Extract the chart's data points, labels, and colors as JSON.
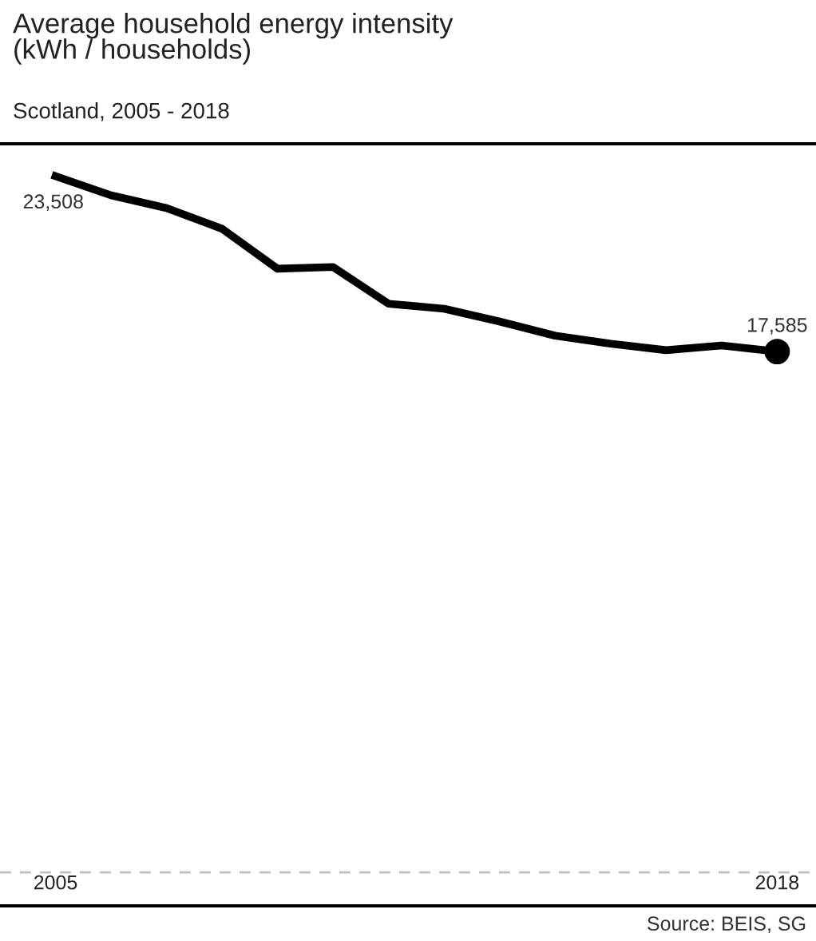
{
  "chart_data": {
    "type": "line",
    "title": "Average household energy intensity\n(kWh / households)",
    "subtitle": "Scotland, 2005 - 2018",
    "x": [
      2005,
      2006,
      2007,
      2008,
      2009,
      2010,
      2011,
      2012,
      2013,
      2014,
      2015,
      2016,
      2017,
      2018
    ],
    "series": [
      {
        "color": "#000000",
        "values": [
          23508,
          22860,
          22430,
          21730,
          20380,
          20440,
          19200,
          19030,
          18600,
          18120,
          17850,
          17630,
          17790,
          17585
        ],
        "value_labels": [
          "23,508",
          null,
          null,
          null,
          null,
          null,
          null,
          null,
          null,
          null,
          null,
          null,
          null,
          "17,585"
        ]
      },
      {
        "type": "scatter",
        "color": "#000000",
        "x": [
          2018
        ],
        "values": [
          17585
        ],
        "marker": "circle"
      }
    ],
    "xlim": [
      2004,
      2018.7
    ],
    "xticks": [
      2005,
      2018
    ],
    "ylim": [
      -1130,
      24600
    ],
    "tick_labels": "x",
    "grid": false,
    "legend": false,
    "ref_lines": [
      {
        "axis": "y",
        "value": 0,
        "color": "#bfbfbf",
        "line_style": "dashed"
      }
    ],
    "annotations": [
      "Source: BEIS, SG"
    ]
  }
}
